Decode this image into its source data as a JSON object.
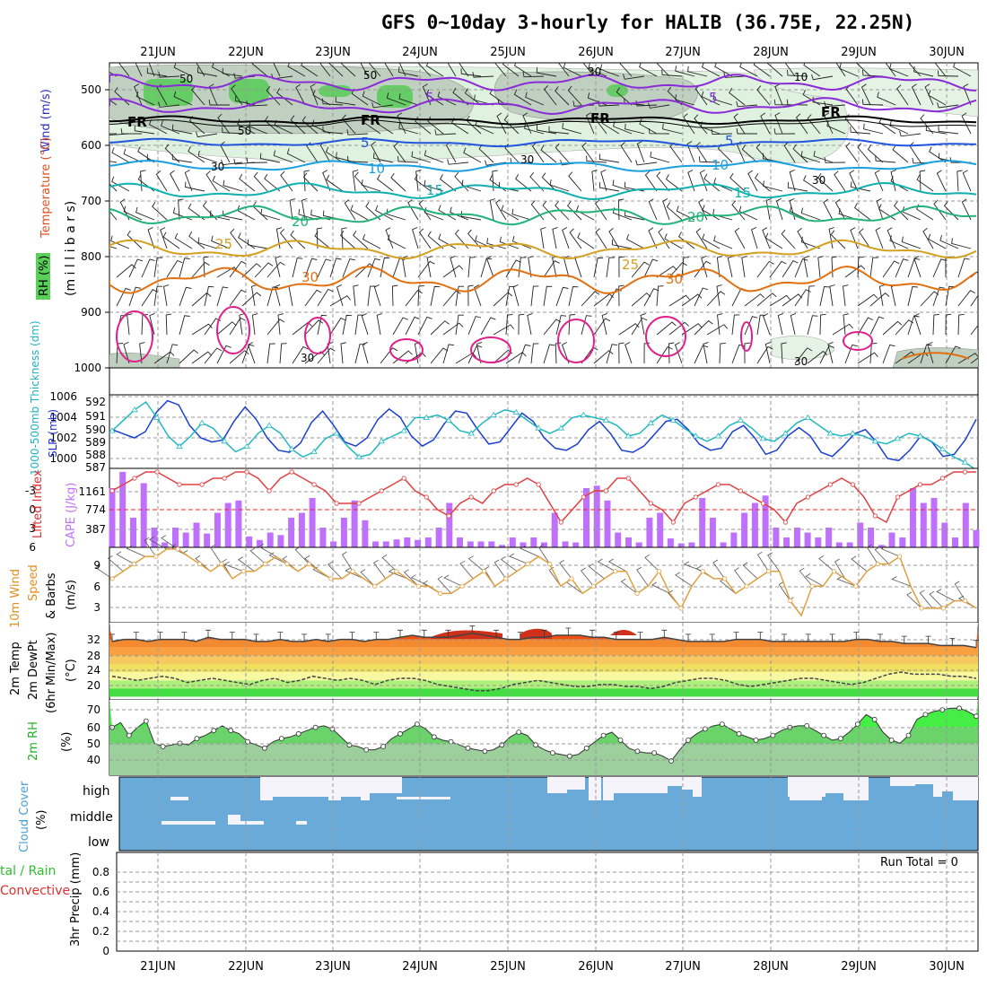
{
  "title": "GFS 0~10day 3-hourly for HALIB (36.75E, 22.25N)",
  "dates": [
    "21JUN",
    "22JUN",
    "23JUN",
    "24JUN",
    "25JUN",
    "26JUN",
    "27JUN",
    "28JUN",
    "29JUN",
    "30JUN"
  ],
  "colors": {
    "purple": "#8a2bd8",
    "blue": "#2255dd",
    "lightblue": "#1aa0e0",
    "teal": "#10b0b0",
    "green": "#22b27a",
    "gold": "#d4a020",
    "orange": "#e07010",
    "magenta": "#e0208a",
    "slp": "#1a3fd0",
    "thick": "#20b8c0",
    "cape": "#c070ff",
    "li": "#e04040",
    "wind": "#e0a040",
    "rh": "#44dd44",
    "cloud": "#6aaad8"
  },
  "panels": {
    "upper": {
      "label_wind": "Wind (m/s)",
      "label_temp": "Temperature (°C)",
      "label_rh": "RH (%)",
      "label_mb": "(m i l l i b a r s)",
      "yticks": [
        "500",
        "600",
        "700",
        "800",
        "900",
        "1000"
      ],
      "contour_labels": [
        {
          "text": "5",
          "color": "purple"
        },
        {
          "text": "5",
          "color": "purple"
        },
        {
          "text": "FR",
          "color": "black"
        },
        {
          "text": "FR",
          "color": "black"
        },
        {
          "text": "FR",
          "color": "black"
        },
        {
          "text": "FR",
          "color": "black"
        },
        {
          "text": "5",
          "color": "blue"
        },
        {
          "text": "5",
          "color": "blue"
        },
        {
          "text": "10",
          "color": "lightblue"
        },
        {
          "text": "10",
          "color": "lightblue"
        },
        {
          "text": "15",
          "color": "teal"
        },
        {
          "text": "15",
          "color": "teal"
        },
        {
          "text": "20",
          "color": "green"
        },
        {
          "text": "20",
          "color": "green"
        },
        {
          "text": "25",
          "color": "gold"
        },
        {
          "text": "25",
          "color": "gold"
        },
        {
          "text": "30",
          "color": "orange"
        },
        {
          "text": "30",
          "color": "orange"
        }
      ],
      "rh_labels": [
        "50",
        "50",
        "50",
        "30",
        "30",
        "30",
        "30",
        "30",
        "30",
        "10"
      ]
    },
    "slp": {
      "label_thick": "1000-500mb Thickness (dm)",
      "label_slp": "SLP (mb)",
      "yticks_left": [
        "592",
        "591",
        "590",
        "589",
        "588",
        "587"
      ],
      "yticks_right": [
        "1006",
        "1004",
        "1002",
        "1000"
      ]
    },
    "cape": {
      "label_li": "Lifted Index",
      "label_cape": "CAPE (J/kg)",
      "yticks_left": [
        "-3",
        "0",
        "3",
        "6"
      ],
      "yticks_right": [
        "1161",
        "774",
        "387"
      ]
    },
    "wind": {
      "label_a": "10m Wind",
      "label_b": "Speed",
      "label_c": "& Barbs",
      "label_unit": "(m/s)",
      "yticks": [
        "9",
        "6",
        "3"
      ]
    },
    "temp": {
      "label_a": "2m Temp",
      "label_b": "2m DewPt",
      "label_c": "(6hr Min/Max)",
      "label_unit": "(°C)",
      "yticks": [
        "32",
        "28",
        "24",
        "20"
      ]
    },
    "rh": {
      "label": "2m RH",
      "label_unit": "(%)",
      "yticks": [
        "70",
        "60",
        "50",
        "40"
      ]
    },
    "cloud": {
      "label": "Cloud Cover",
      "label_unit": "(%)",
      "levels": [
        "high",
        "middle",
        "low"
      ]
    },
    "precip": {
      "label_a": "tal / Rain",
      "label_b": "Convective",
      "label_c": "3hr Precip (mm)",
      "run_total": "Run Total = 0",
      "yticks": [
        "0.8",
        "0.6",
        "0.4",
        "0.2",
        "0"
      ]
    }
  },
  "chart_data": [
    {
      "type": "line",
      "name": "sea level pressure and thickness",
      "x_unit": "3-hourly steps from 20 Jun 12Z",
      "series": [
        {
          "name": "SLP (mb)",
          "values": [
            1002.8,
            1002.4,
            1002.0,
            1002.6,
            1004.5,
            1005.6,
            1005.2,
            1003.2,
            1002.0,
            1001.6,
            1001.8,
            1003.6,
            1005.0,
            1003.8,
            1002.0,
            1000.8,
            1000.6,
            1001.5,
            1003.5,
            1004.6,
            1003.2,
            1001.6,
            1001.2,
            1002.0,
            1003.8,
            1004.8,
            1004.0,
            1002.2,
            1001.2,
            1001.8,
            1003.4,
            1004.6,
            1004.4,
            1002.8,
            1001.4,
            1001.6,
            1003.0,
            1004.4,
            1003.6,
            1002.0,
            1001.0,
            1000.8,
            1001.4,
            1002.8,
            1003.6,
            1002.4,
            1000.8,
            1000.6,
            1001.2,
            1002.4,
            1003.6,
            1003.8,
            1002.8,
            1001.4,
            1000.8,
            1001.0,
            1002.6,
            1003.2,
            1002.0,
            1000.4,
            1000.8,
            1002.2,
            1003.0,
            1002.2,
            1000.6,
            1000.2,
            1001.2,
            1002.4,
            1002.8,
            1001.6,
            1000.0,
            999.8,
            1000.8,
            1002.2,
            1001.6,
            1000.2,
            1000.4,
            1001.8,
            1003.8
          ]
        },
        {
          "name": "Thickness (dm)",
          "values": [
            589.8,
            590.6,
            591.4,
            592.0,
            590.8,
            589.4,
            588.6,
            589.4,
            590.4,
            590.0,
            589.0,
            588.2,
            588.6,
            589.6,
            590.2,
            589.6,
            588.4,
            587.8,
            588.2,
            589.2,
            589.6,
            588.6,
            587.8,
            588.0,
            589.0,
            589.4,
            589.8,
            590.8,
            590.8,
            591.0,
            590.6,
            589.8,
            589.6,
            590.4,
            591.0,
            591.4,
            591.2,
            590.6,
            590.0,
            589.6,
            590.0,
            590.8,
            591.0,
            590.8,
            590.6,
            590.2,
            589.4,
            589.6,
            590.4,
            591.0,
            590.6,
            590.0,
            589.4,
            589.0,
            589.4,
            590.2,
            590.6,
            590.0,
            589.2,
            589.0,
            589.6,
            590.4,
            590.8,
            590.2,
            589.6,
            589.4,
            589.6,
            589.4,
            589.0,
            588.8,
            589.2,
            589.6,
            589.4,
            589.0,
            588.4,
            587.8,
            587.4,
            586.8
          ]
        }
      ]
    },
    {
      "type": "bar",
      "name": "CAPE and lifted index",
      "series": [
        {
          "name": "CAPE (J/kg)",
          "values": [
            1200,
            1530,
            600,
            1300,
            400,
            100,
            400,
            300,
            500,
            280,
            700,
            900,
            950,
            220,
            150,
            300,
            250,
            600,
            700,
            1000,
            400,
            120,
            600,
            950,
            550,
            120,
            120,
            160,
            200,
            150,
            200,
            400,
            900,
            200,
            120,
            120,
            120,
            50,
            200,
            100,
            200,
            100,
            700,
            120,
            100,
            1200,
            1250,
            950,
            300,
            200,
            100,
            600,
            700,
            180,
            80,
            100,
            1000,
            600,
            100,
            300,
            700,
            900,
            1050,
            400,
            200,
            400,
            300,
            200,
            400,
            100,
            100,
            500,
            400,
            50,
            300,
            200,
            1200,
            900,
            1000,
            500,
            200,
            900,
            350
          ]
        },
        {
          "name": "Lifted Index",
          "values": [
            -3,
            -4,
            -5,
            -6,
            -6,
            -5,
            -4,
            -4,
            -4,
            -5,
            -5,
            -6,
            -6,
            -5,
            -3,
            -5,
            -6,
            -5,
            -4,
            -3,
            -1,
            -1,
            -1,
            -2,
            -3,
            -4,
            -5,
            -3,
            -2,
            0,
            1,
            -1,
            -2,
            -1,
            -3,
            -4,
            -4,
            -5,
            -4,
            -1,
            2,
            0,
            -2,
            -3,
            -3,
            -5,
            -5,
            -3,
            -1,
            0,
            2,
            -1,
            -2,
            -3,
            -4,
            -4,
            -3,
            -2,
            -1,
            0,
            2,
            -1,
            -2,
            -3,
            -4,
            -5,
            -4,
            -2,
            1,
            2,
            -2,
            -3,
            -4,
            -4,
            -5,
            -6,
            -6,
            -6
          ]
        }
      ]
    },
    {
      "type": "line",
      "name": "10m wind speed",
      "series": [
        {
          "name": "Speed (m/s)",
          "values": [
            6,
            7,
            8,
            9,
            9,
            10,
            10,
            9,
            8,
            7,
            8,
            6,
            7,
            7,
            8,
            9,
            8,
            7,
            8,
            7,
            6,
            6,
            7,
            6,
            5,
            6,
            7,
            6,
            5,
            5,
            4,
            4,
            5,
            6,
            7,
            5,
            6,
            7,
            8,
            9,
            8,
            5,
            6,
            4,
            5,
            6,
            7,
            7,
            4,
            5,
            7,
            4,
            2,
            5,
            7,
            6,
            6,
            4,
            5,
            6,
            7,
            7,
            3,
            1,
            5,
            5,
            7,
            6,
            5,
            7,
            8,
            8,
            9,
            5,
            2,
            2,
            2,
            3,
            3,
            2
          ]
        }
      ]
    },
    {
      "type": "area",
      "name": "2m temperature and dew point",
      "series": [
        {
          "name": "Temp (°C)",
          "values": [
            31.5,
            32,
            32,
            31.5,
            32,
            32,
            32,
            31.5,
            32.5,
            32,
            32,
            32,
            31.5,
            31.5,
            32,
            31.5,
            31.5,
            32,
            31.5,
            32,
            32,
            31.5,
            32,
            32,
            32.5,
            33,
            32.5,
            32.5,
            32.5,
            33,
            33.5,
            33,
            32.5,
            32,
            32,
            32.5,
            32.5,
            33,
            33,
            33,
            32.5,
            32.5,
            32,
            32,
            32,
            32,
            32.5,
            32,
            31.5,
            31.5,
            31.5,
            31.5,
            32,
            32,
            32,
            31.5,
            31.5,
            31.5,
            31.5,
            31.5,
            31.5,
            31.5,
            32,
            32,
            31.5,
            31.5,
            31,
            31,
            31,
            30.5,
            30.5,
            30.5,
            30
          ]
        },
        {
          "name": "DewPt (°C)",
          "values": [
            23,
            22.5,
            22,
            22.5,
            23,
            22.5,
            21.5,
            22,
            22.5,
            22,
            21.5,
            21,
            22,
            22.5,
            21.5,
            22,
            23,
            22.5,
            22,
            22.5,
            22,
            21,
            22,
            22.5,
            22.5,
            22,
            21,
            20.5,
            20,
            19.5,
            19.5,
            20,
            21,
            21.5,
            22,
            21.5,
            21,
            20.5,
            20.5,
            21,
            21,
            20.5,
            20.5,
            20,
            20.5,
            21.5,
            22,
            22.5,
            22.5,
            22,
            21,
            20.5,
            21,
            21.5,
            22,
            22.5,
            22.5,
            22,
            21.5,
            21,
            21.5,
            22.5,
            23.5,
            24,
            23.5,
            23.5,
            23.5,
            23,
            23,
            22.5
          ]
        }
      ]
    },
    {
      "type": "area",
      "name": "2m relative humidity",
      "series": [
        {
          "name": "RH (%)",
          "values": [
            60,
            63,
            55,
            60,
            64,
            50,
            48,
            49,
            50,
            49,
            53,
            55,
            58,
            61,
            58,
            56,
            51,
            49,
            47,
            51,
            53,
            54,
            56,
            58,
            60,
            61,
            59,
            54,
            49,
            48,
            46,
            46,
            48,
            53,
            56,
            59,
            62,
            59,
            54,
            52,
            51,
            49,
            47,
            46,
            45,
            46,
            49,
            54,
            57,
            55,
            49,
            46,
            44,
            43,
            42,
            43,
            47,
            51,
            55,
            57,
            52,
            47,
            45,
            44,
            44,
            42,
            39,
            46,
            52,
            56,
            59,
            61,
            62,
            59,
            56,
            54,
            52,
            53,
            55,
            58,
            60,
            61,
            61,
            58,
            55,
            52,
            53,
            57,
            62,
            68,
            65,
            57,
            52,
            50,
            55,
            65,
            68,
            70,
            71,
            72,
            72,
            70,
            67
          ]
        }
      ]
    }
  ]
}
